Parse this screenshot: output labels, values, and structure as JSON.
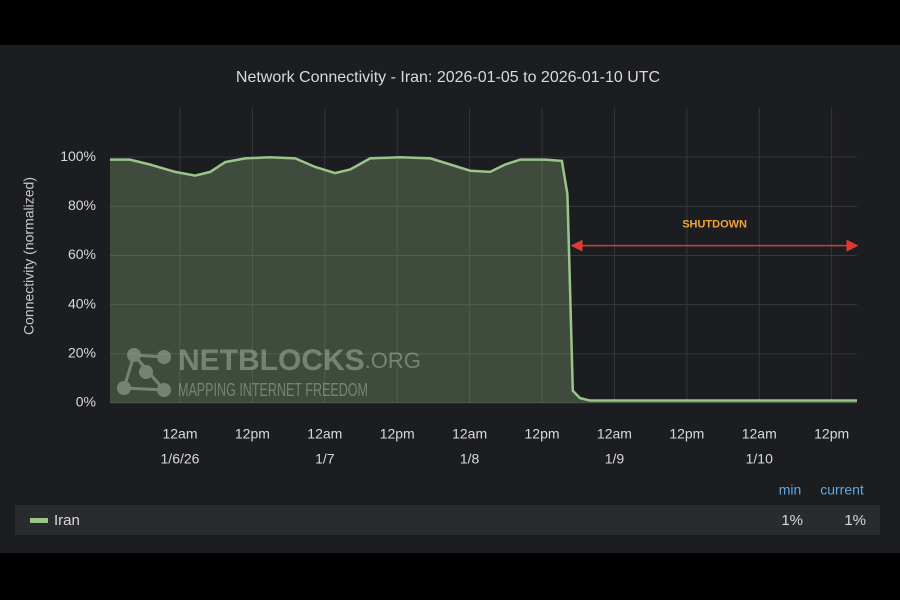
{
  "chart_data": {
    "type": "area",
    "title": "Network Connectivity - Iran: 2026-01-05 to 2026-01-10 UTC",
    "y_label": "Connectivity (normalized)",
    "x": [
      12.4,
      15.7,
      19.0,
      23.2,
      26.5,
      29.0,
      31.5,
      34.8,
      38.9,
      43.1,
      46.4,
      49.7,
      52.2,
      55.5,
      60.5,
      65.5,
      68.8,
      72.1,
      75.4,
      77.9,
      80.4,
      84.5,
      87.3,
      88.2,
      88.6,
      89.1,
      90.3,
      91.9,
      110.2,
      136.2
    ],
    "series": [
      {
        "name": "Iran",
        "color": "#9ac48a",
        "values": [
          99,
          99,
          97,
          94,
          92.5,
          94,
          98,
          99.5,
          100,
          99.5,
          96,
          93.5,
          95,
          99.5,
          100,
          99.5,
          97,
          94.5,
          94,
          97,
          99,
          99,
          98.5,
          85,
          50,
          5,
          2,
          1,
          1,
          1
        ]
      }
    ],
    "xlim": [
      12.4,
      136.2
    ],
    "ylim": [
      0,
      120
    ],
    "yticks": [
      {
        "value": 0,
        "label": "0%"
      },
      {
        "value": 20,
        "label": "20%"
      },
      {
        "value": 40,
        "label": "40%"
      },
      {
        "value": 60,
        "label": "60%"
      },
      {
        "value": 80,
        "label": "80%"
      },
      {
        "value": 100,
        "label": "100%"
      }
    ],
    "xticks": [
      {
        "value": 24,
        "label": "12am",
        "date": "1/6/26"
      },
      {
        "value": 36,
        "label": "12pm"
      },
      {
        "value": 48,
        "label": "12am",
        "date": "1/7"
      },
      {
        "value": 60,
        "label": "12pm"
      },
      {
        "value": 72,
        "label": "12am",
        "date": "1/8"
      },
      {
        "value": 84,
        "label": "12pm"
      },
      {
        "value": 96,
        "label": "12am",
        "date": "1/9"
      },
      {
        "value": 108,
        "label": "12pm"
      },
      {
        "value": 120,
        "label": "12am",
        "date": "1/10"
      },
      {
        "value": 132,
        "label": "12pm"
      }
    ],
    "grid": true,
    "annotation": {
      "text": "SHUTDOWN",
      "x_start": 89.0,
      "x_end": 136.2,
      "y": 64,
      "color": "#e03a30"
    },
    "watermark": {
      "text": "NETBLOCKS",
      "suffix": ".ORG",
      "tagline": "MAPPING INTERNET FREEDOM"
    },
    "legend_columns": [
      "min",
      "current"
    ],
    "legend_stats": [
      {
        "value": 1,
        "label": "1%"
      },
      {
        "value": 1,
        "label": "1%"
      }
    ]
  }
}
